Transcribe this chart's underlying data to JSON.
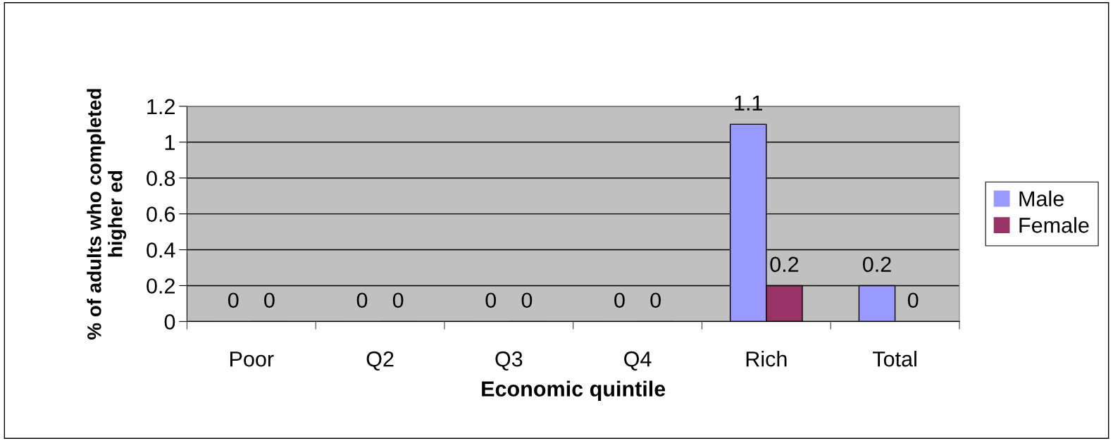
{
  "chart_data": {
    "type": "bar",
    "xlabel": "Economic quintile",
    "ylabel": "% of adults who completed\nhigher ed",
    "categories": [
      "Poor",
      "Q2",
      "Q3",
      "Q4",
      "Rich",
      "Total"
    ],
    "series": [
      {
        "name": "Male",
        "color": "#9999ff",
        "values": [
          0,
          0,
          0,
          0,
          1.1,
          0.2
        ]
      },
      {
        "name": "Female",
        "color": "#993366",
        "values": [
          0,
          0,
          0,
          0,
          0.2,
          0
        ]
      }
    ],
    "ylim": [
      0,
      1.2
    ],
    "yticks": [
      0,
      0.2,
      0.4,
      0.6,
      0.8,
      1,
      1.2
    ],
    "grid": "y",
    "legend": "right",
    "data_labels": true
  }
}
